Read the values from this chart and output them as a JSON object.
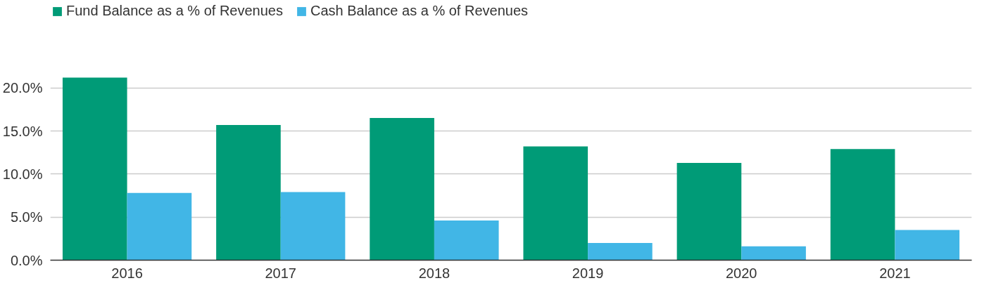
{
  "chart_data": {
    "type": "bar",
    "categories": [
      "2016",
      "2017",
      "2018",
      "2019",
      "2020",
      "2021"
    ],
    "series": [
      {
        "name": "Fund Balance as a % of Revenues",
        "color": "#009b77",
        "values": [
          21.2,
          15.7,
          16.5,
          13.2,
          11.3,
          12.9
        ]
      },
      {
        "name": "Cash Balance as a % of Revenues",
        "color": "#41b6e6",
        "values": [
          7.8,
          7.9,
          4.6,
          2.0,
          1.6,
          3.5
        ]
      }
    ],
    "ylim": [
      0,
      30
    ],
    "yticks": [
      {
        "value": 0,
        "label": "0.0%"
      },
      {
        "value": 5,
        "label": "5.0%"
      },
      {
        "value": 10,
        "label": "10.0%"
      },
      {
        "value": 15,
        "label": "15.0%"
      },
      {
        "value": 20,
        "label": "20.0%"
      }
    ],
    "grid": "y",
    "legend": "top left"
  }
}
